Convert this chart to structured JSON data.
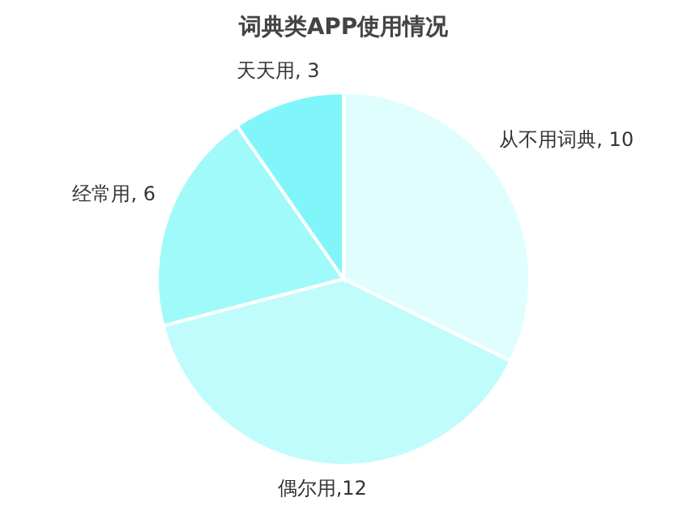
{
  "chart_data": {
    "type": "pie",
    "title": "词典类APP使用情况",
    "categories": [
      "从不用词典",
      "偶尔用",
      "经常用",
      "天天用"
    ],
    "values": [
      10,
      12,
      6,
      3
    ],
    "colors": [
      "#e0fefe",
      "#c0fcfc",
      "#a0fafa",
      "#80f6fa"
    ],
    "value_labels": [
      ", 10",
      ",12",
      ", 6",
      ", 3"
    ],
    "legend": false
  }
}
